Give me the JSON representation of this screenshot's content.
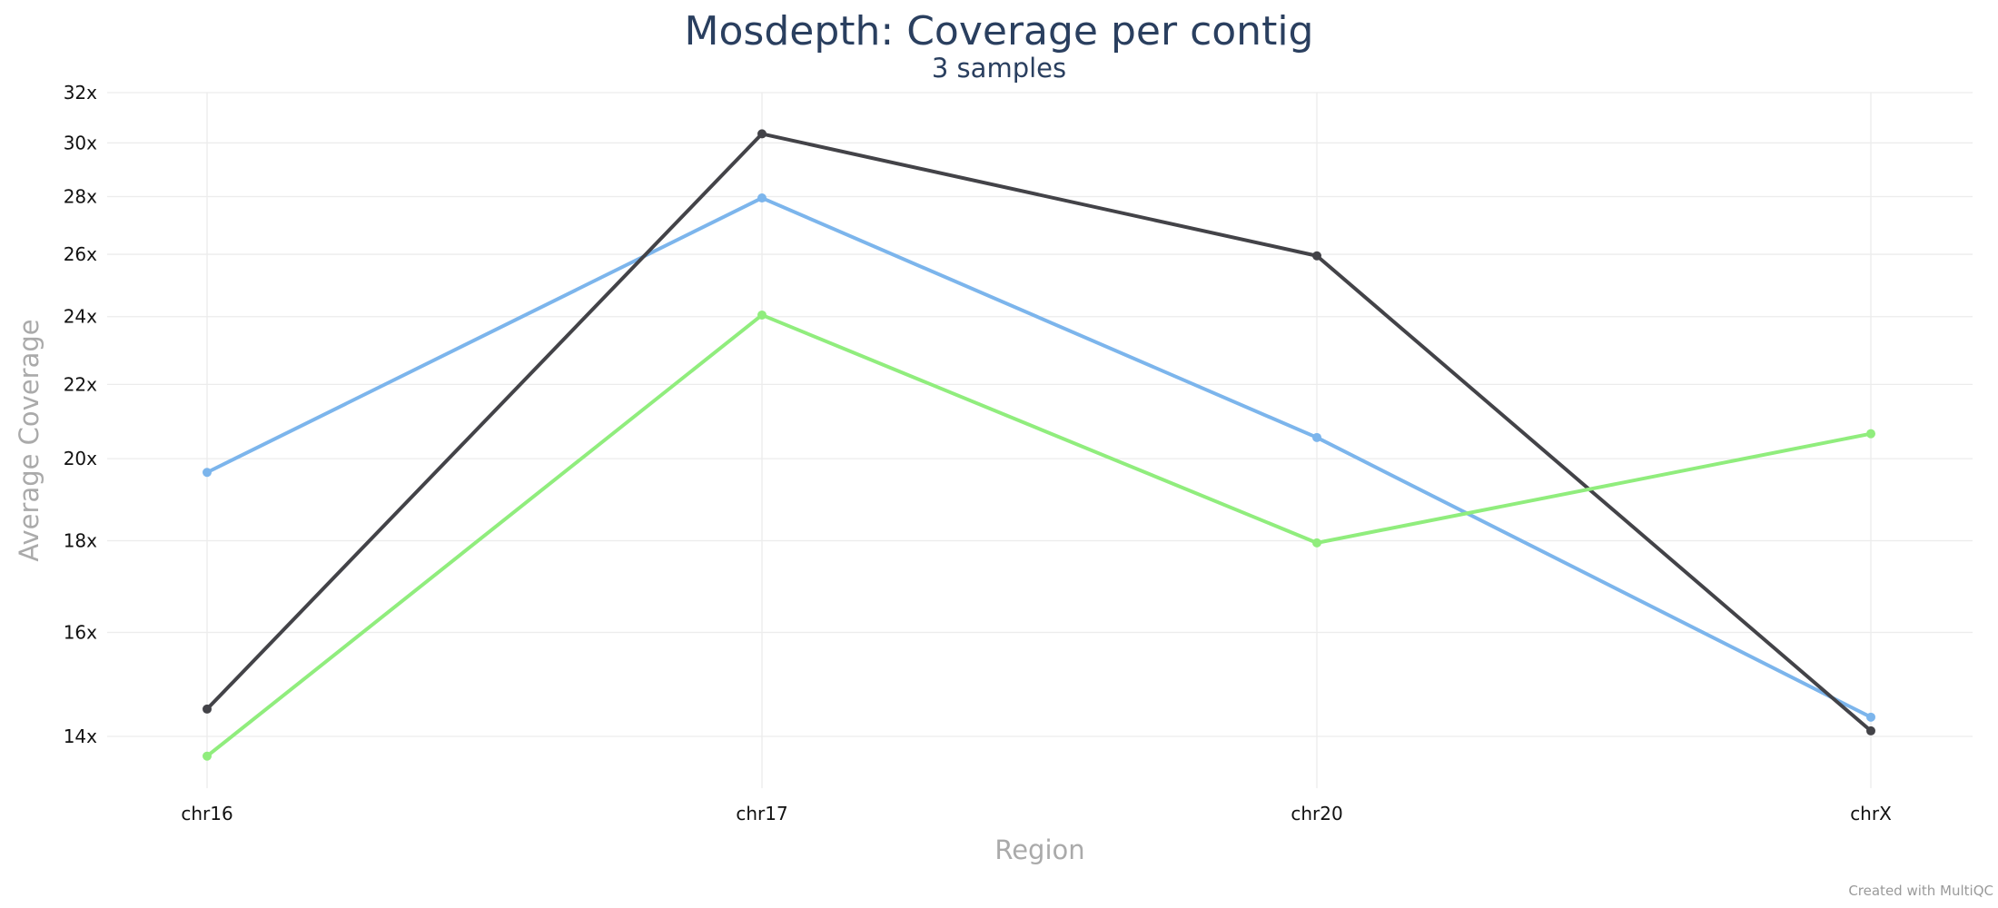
{
  "chart_data": {
    "type": "line",
    "title": "Mosdepth: Coverage per contig",
    "subtitle": "3 samples",
    "xlabel": "Region",
    "ylabel": "Average Coverage",
    "categories": [
      "chr16",
      "chr17",
      "chr20",
      "chrX"
    ],
    "y_scale": "log",
    "ylim": [
      13.1,
      32
    ],
    "yticks": [
      14,
      16,
      18,
      20,
      22,
      24,
      26,
      28,
      30,
      32
    ],
    "ytick_suffix": "x",
    "grid": true,
    "legend": "none",
    "series": [
      {
        "color": "#7cb5ec",
        "values": [
          19.65,
          27.95,
          20.55,
          14.35
        ]
      },
      {
        "color": "#434348",
        "values": [
          14.5,
          30.35,
          25.95,
          14.1
        ]
      },
      {
        "color": "#90ed7d",
        "values": [
          13.65,
          24.05,
          17.95,
          20.65
        ]
      }
    ]
  },
  "credit": "Created with MultiQC"
}
